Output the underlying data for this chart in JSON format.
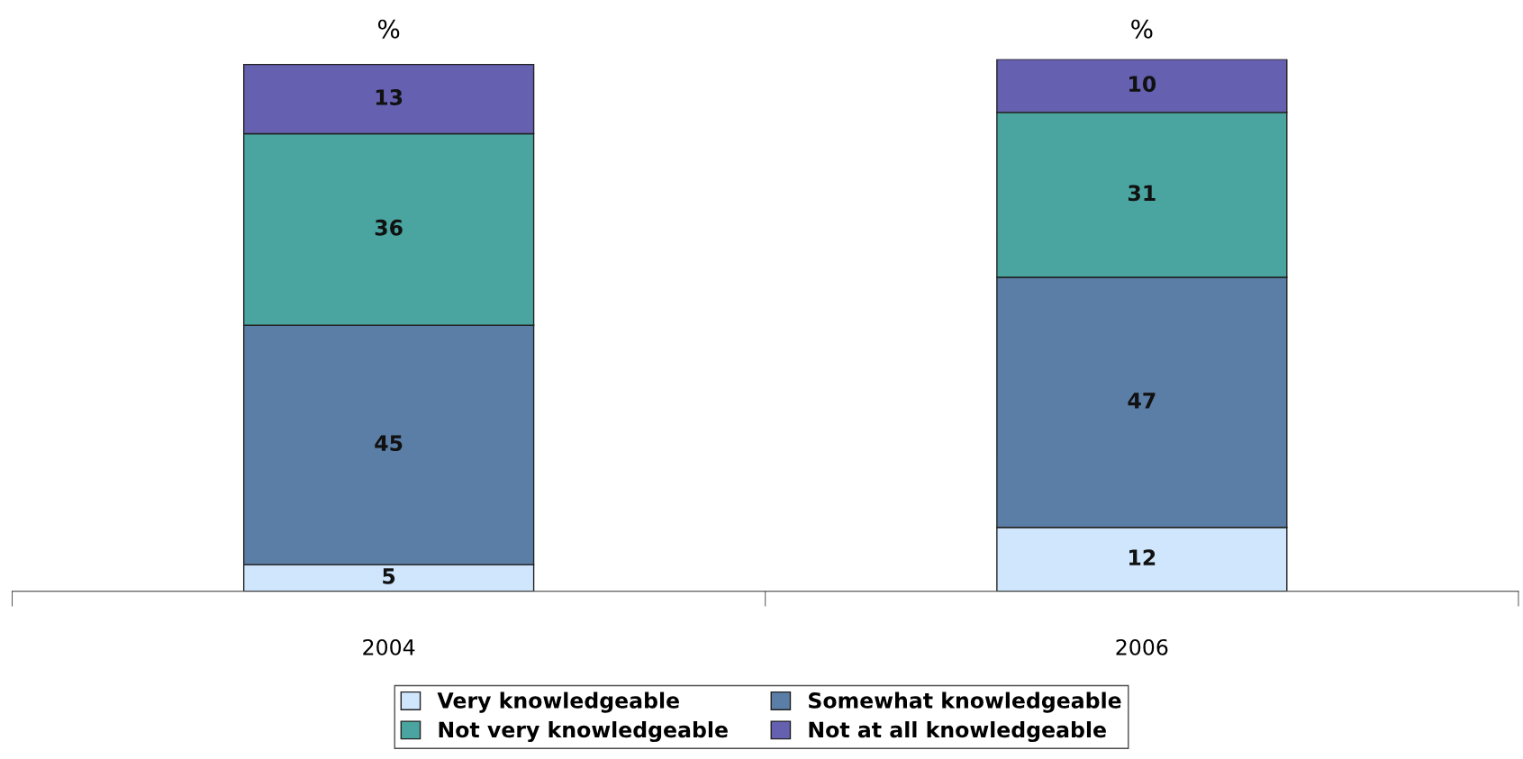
{
  "chart_data": {
    "type": "bar",
    "stacked": true,
    "categories": [
      "2004",
      "2006"
    ],
    "series": [
      {
        "name": "Very knowledgeable",
        "color": "#cfe6fd",
        "values": [
          5,
          12
        ]
      },
      {
        "name": "Somewhat knowledgeable",
        "color": "#5b7ea6",
        "values": [
          45,
          47
        ]
      },
      {
        "name": "Not very knowledgeable",
        "color": "#4aa5a0",
        "values": [
          36,
          31
        ]
      },
      {
        "name": "Not at all knowledgeable",
        "color": "#6560b0",
        "values": [
          13,
          10
        ]
      }
    ],
    "data_labels": true,
    "legend": "bottom",
    "grid": false,
    "annotations": [
      "%",
      "%"
    ]
  }
}
